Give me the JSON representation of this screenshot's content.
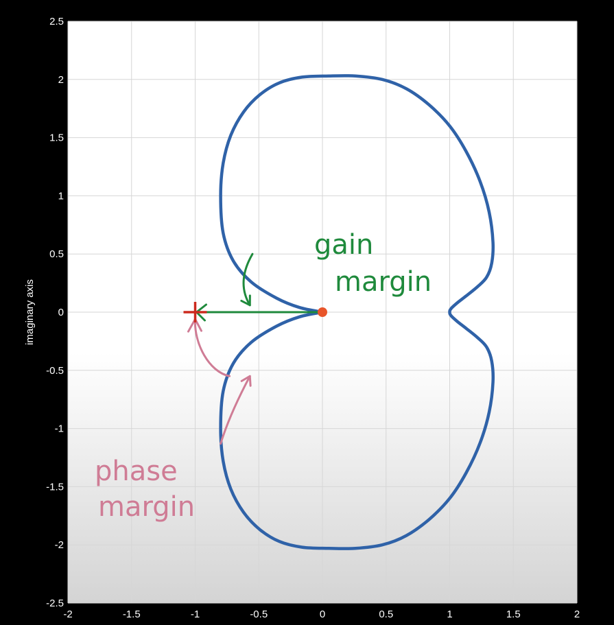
{
  "colors": {
    "background": "#000000",
    "plot_top": "#ffffff",
    "plot_bottom": "#d4d4d4",
    "grid": "#d6d6d6",
    "curve": "#2f62a8",
    "origin_marker": "#e8552a",
    "critical_point_marker": "#cc2a1e",
    "gain_margin": "#1f8a3c",
    "phase_margin": "#cf7c95"
  },
  "chart_data": {
    "type": "line",
    "title": "",
    "xlabel": "",
    "ylabel": "imaginary axis",
    "xlim": [
      -2,
      2
    ],
    "ylim": [
      -2.5,
      2.5
    ],
    "grid": true,
    "x_ticks": [
      -2,
      -1.5,
      -1,
      -0.5,
      0,
      0.5,
      1,
      1.5,
      2
    ],
    "y_ticks": [
      -2.5,
      -2,
      -1.5,
      -1,
      -0.5,
      0,
      0.5,
      1,
      1.5,
      2,
      2.5
    ],
    "x_tick_labels": [
      "-2",
      "-1.5",
      "-1",
      "-0.5",
      "0",
      "0.5",
      "1",
      "1.5",
      "2"
    ],
    "y_tick_labels": [
      "-2.5",
      "-2",
      "-1.5",
      "-1",
      "-0.5",
      "0",
      "0.5",
      "1",
      "1.5",
      "2",
      "2.5"
    ],
    "series": [
      {
        "values_shape": "nyquist-curve",
        "x": [
          0.0,
          -0.18,
          -0.36,
          -0.56,
          -0.7,
          -0.78,
          -0.8,
          -0.78,
          -0.72,
          -0.62,
          -0.49,
          -0.34,
          -0.16,
          0.05,
          0.26,
          0.47,
          0.66,
          0.84,
          1.0,
          1.13,
          1.24,
          1.31,
          1.34,
          1.33,
          1.29,
          1.22,
          1.13,
          1.06,
          1.01,
          1.0,
          1.01,
          1.06,
          1.13,
          1.22,
          1.29,
          1.33,
          1.34,
          1.31,
          1.24,
          1.13,
          1.0,
          0.84,
          0.66,
          0.47,
          0.26,
          0.05,
          -0.16,
          -0.34,
          -0.49,
          -0.62,
          -0.72,
          -0.78,
          -0.8,
          -0.78,
          -0.7,
          -0.56,
          -0.36,
          -0.18,
          0.0
        ],
        "y": [
          0.0,
          0.04,
          0.12,
          0.26,
          0.44,
          0.68,
          1.0,
          1.28,
          1.52,
          1.72,
          1.87,
          1.97,
          2.02,
          2.03,
          2.03,
          2.0,
          1.92,
          1.78,
          1.6,
          1.38,
          1.12,
          0.86,
          0.6,
          0.42,
          0.3,
          0.22,
          0.14,
          0.08,
          0.03,
          0.0,
          -0.03,
          -0.08,
          -0.14,
          -0.22,
          -0.3,
          -0.42,
          -0.6,
          -0.86,
          -1.12,
          -1.38,
          -1.6,
          -1.78,
          -1.92,
          -2.0,
          -2.03,
          -2.03,
          -2.02,
          -1.97,
          -1.87,
          -1.72,
          -1.52,
          -1.28,
          -1.0,
          -0.68,
          -0.44,
          -0.26,
          -0.12,
          -0.04,
          0.0
        ]
      }
    ],
    "markers": [
      {
        "shape": "dot",
        "x": 0,
        "y": 0
      },
      {
        "shape": "plus",
        "x": -1,
        "y": 0
      }
    ],
    "annotations": [
      {
        "text_lines": [
          "gain",
          "margin"
        ],
        "color_key": "gain_margin",
        "arrow_from": [
          -0.55,
          0.5
        ],
        "arrow_to": [
          -0.57,
          0.06
        ]
      },
      {
        "text_lines": [
          "phase",
          "margin"
        ],
        "color_key": "phase_margin",
        "arrow_from": [
          -0.8,
          -1.13
        ],
        "arrow_to": [
          -0.57,
          -0.55
        ]
      }
    ],
    "gain_margin_arrow": {
      "from": [
        0,
        0
      ],
      "to": [
        -1,
        0
      ]
    },
    "phase_margin_arc": {
      "from": [
        -0.73,
        -0.55
      ],
      "to": [
        -1,
        -0.06
      ]
    }
  }
}
